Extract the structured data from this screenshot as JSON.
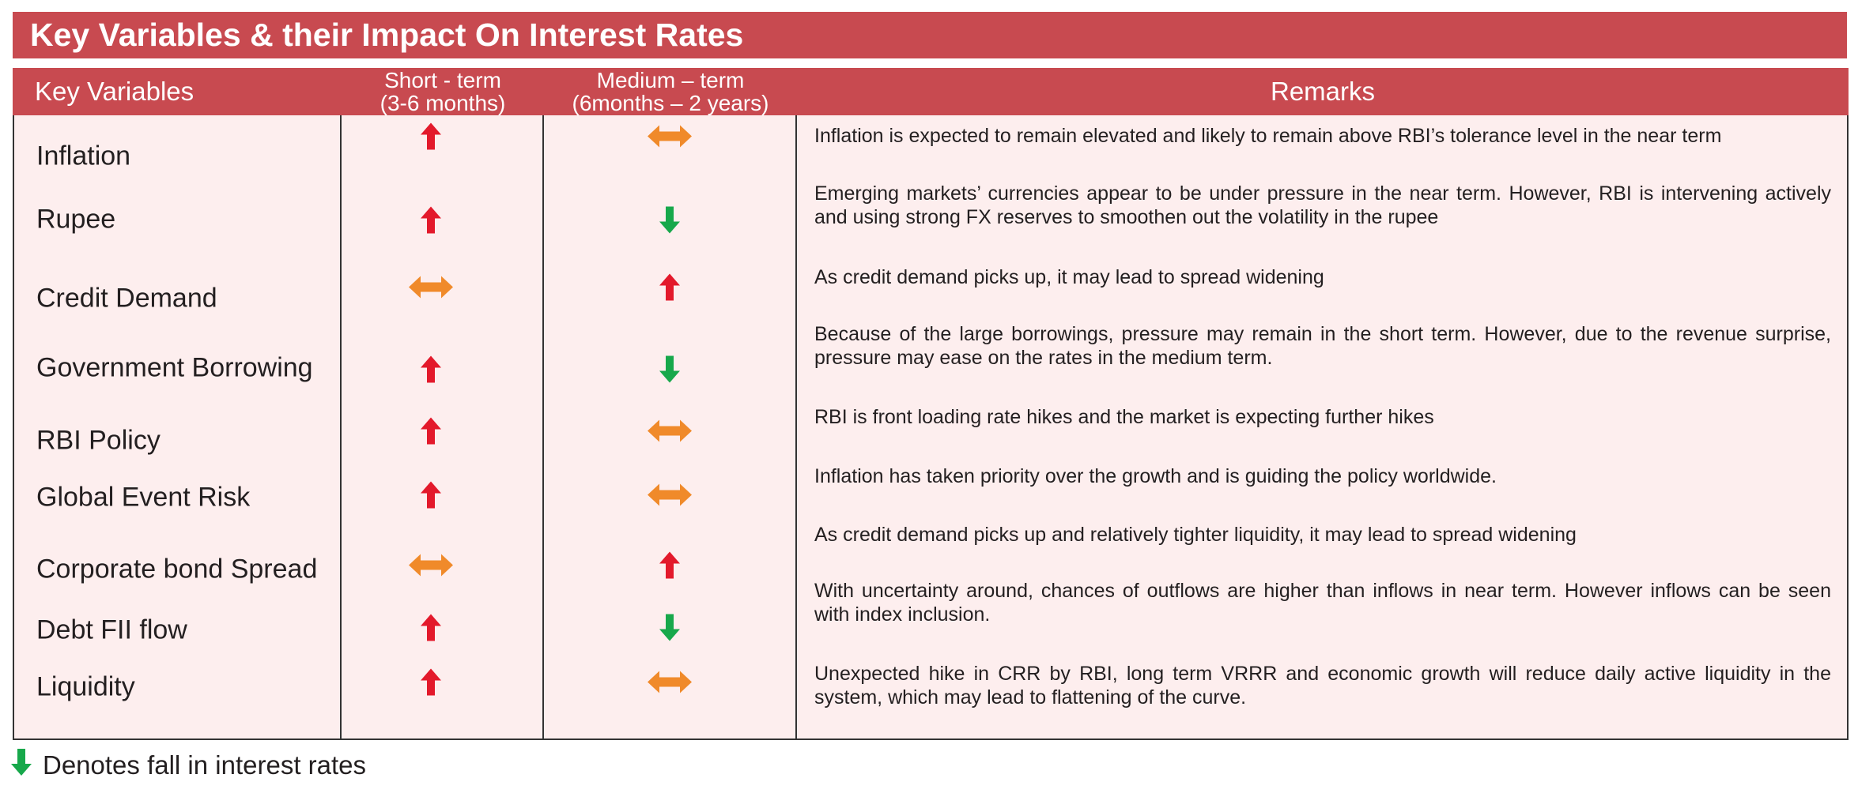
{
  "title": "Key Variables & their Impact On Interest Rates",
  "headers": {
    "key_variables": "Key Variables",
    "short_term_line1": "Short  - term",
    "short_term_line2": "(3-6 months)",
    "medium_term_line1": "Medium – term",
    "medium_term_line2": "(6months – 2 years)",
    "remarks": "Remarks"
  },
  "colors": {
    "header_red": "#c84a50",
    "row_pink": "#fdeeee",
    "arrow_up_red": "#e3192b",
    "arrow_down_green": "#17a84b",
    "arrow_both_orange": "#f08a2a"
  },
  "rows": [
    {
      "variable": "Inflation",
      "short_term": "up",
      "medium_term": "both",
      "remark": "Inflation is expected to remain elevated and likely to remain above RBI’s tolerance level in the near term"
    },
    {
      "variable": "Rupee",
      "short_term": "up",
      "medium_term": "down",
      "remark": "Emerging markets’ currencies appear to be under pressure in the near term. However, RBI is intervening actively and using strong FX reserves to smoothen out the volatility in the rupee"
    },
    {
      "variable": "Credit Demand",
      "short_term": "both",
      "medium_term": "up",
      "remark": "As credit demand picks up, it may lead to spread widening"
    },
    {
      "variable": "Government Borrowing",
      "short_term": "up",
      "medium_term": "down",
      "remark": "Because of the large borrowings, pressure may remain in the short term. However, due to the revenue surprise, pressure may ease on the rates in the medium term."
    },
    {
      "variable": "RBI Policy",
      "short_term": "up",
      "medium_term": "both",
      "remark": "RBI is front loading rate hikes and the market is expecting further hikes"
    },
    {
      "variable": "Global Event Risk",
      "short_term": "up",
      "medium_term": "both",
      "remark": "Inflation has taken priority over the growth and is guiding the policy worldwide."
    },
    {
      "variable": "Corporate bond Spread",
      "short_term": "both",
      "medium_term": "up",
      "remark": "As credit demand picks up and relatively tighter liquidity, it may lead to spread widening"
    },
    {
      "variable": "Debt FII flow",
      "short_term": "up",
      "medium_term": "down",
      "remark": "With uncertainty around, chances of outflows are higher than inflows in near term. However inflows can be seen with index inclusion."
    },
    {
      "variable": "Liquidity",
      "short_term": "up",
      "medium_term": "both",
      "remark": "Unexpected hike in CRR by RBI, long term VRRR and economic growth will reduce daily active liquidity in the system, which may lead to flattening of the curve."
    }
  ],
  "legend": {
    "icon": "arrow-down-green-icon",
    "text": "Denotes fall in interest rates"
  }
}
